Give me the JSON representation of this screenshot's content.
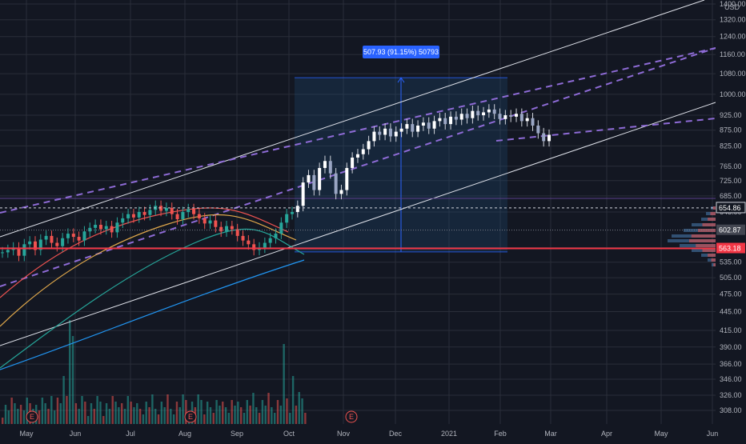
{
  "chart_data": {
    "type": "candlestick",
    "currency": "USD",
    "y_scale": "log",
    "ylim": [
      290,
      1520
    ],
    "y_ticks": [
      308.0,
      326.0,
      346.0,
      366.0,
      390.0,
      415.0,
      445.0,
      475.0,
      505.0,
      535.0,
      565.0,
      645.0,
      685.0,
      725.0,
      765.0,
      825.0,
      875.0,
      925.0,
      1000.0,
      1080.0,
      1160.0,
      1240.0,
      1320.0,
      1400.0
    ],
    "y_tick_labels": [
      "308.00",
      "326.00",
      "346.00",
      "366.00",
      "390.00",
      "415.00",
      "445.00",
      "475.00",
      "505.00",
      "535.00",
      "565.00",
      "645.00",
      "685.00",
      "725.00",
      "765.00",
      "825.00",
      "875.00",
      "925.00",
      "1000.00",
      "1080.00",
      "1160.00",
      "1240.00",
      "1320.00",
      "1400.00"
    ],
    "x_labels": [
      "May",
      "Jun",
      "Jul",
      "Aug",
      "Sep",
      "Oct",
      "Nov",
      "Dec",
      "2021",
      "Feb",
      "Mar",
      "Apr",
      "May",
      "Jun"
    ],
    "price_markers": [
      {
        "label": "654.86",
        "value": 654.86,
        "style": "dashed-white"
      },
      {
        "label": "602.87",
        "value": 602.87,
        "style": "badge-gray"
      },
      {
        "label": "563.18",
        "value": 563.18,
        "style": "badge-red"
      }
    ],
    "measure": {
      "label": "507.93 (91.15%) 50793",
      "from": 556,
      "to": 1063.9
    },
    "earnings_markers": [
      "E",
      "E",
      "E"
    ],
    "series": [
      {
        "key": "price",
        "values": [
          555,
          560,
          565,
          548,
          572,
          578,
          560,
          582,
          590,
          575,
          568,
          585,
          595,
          588,
          580,
          600,
          608,
          615,
          605,
          612,
          598,
          620,
          630,
          640,
          632,
          645,
          638,
          650,
          660,
          648,
          655,
          640,
          628,
          645,
          652,
          640,
          630,
          618,
          625,
          610,
          600,
          612,
          605,
          590,
          580,
          572,
          560,
          565,
          575,
          585,
          595,
          620,
          640,
          645,
          660,
          720,
          740,
          700,
          760,
          780,
          745,
          690,
          700,
          760,
          790,
          800,
          815,
          840,
          870,
          860,
          880,
          855,
          870,
          880,
          895,
          870,
          890,
          900,
          880,
          905,
          915,
          895,
          920,
          910,
          930,
          915,
          940,
          925,
          935,
          945,
          930,
          912,
          925,
          920,
          930,
          905,
          915,
          890,
          865,
          840,
          860
        ]
      }
    ]
  }
}
